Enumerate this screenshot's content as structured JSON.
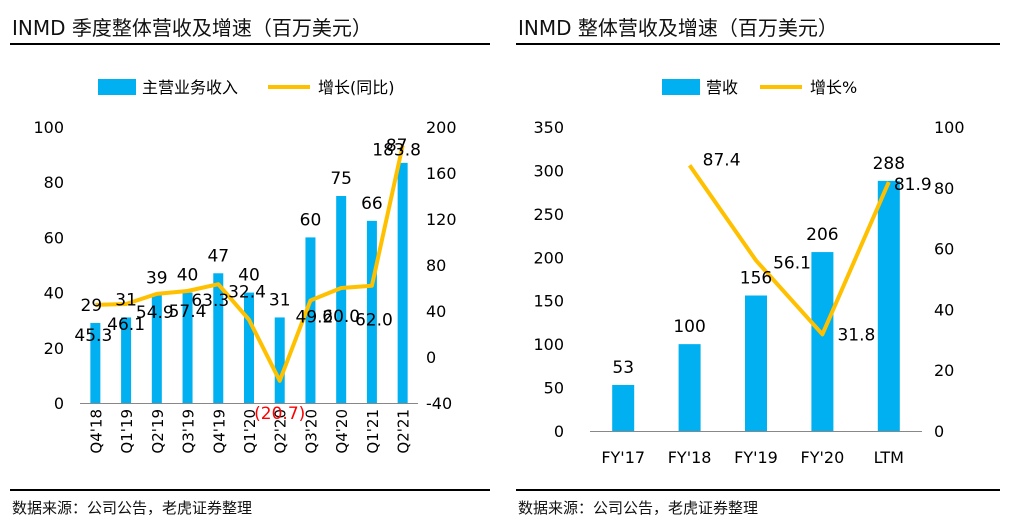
{
  "chart_data": [
    {
      "type": "bar",
      "title": "INMD 季度整体营收及增速（百万美元）",
      "source": "数据来源：公司公告，老虎证券整理",
      "categories": [
        "Q4'18",
        "Q1'19",
        "Q2'19",
        "Q3'19",
        "Q4'19",
        "Q1'20",
        "Q2'20",
        "Q3'20",
        "Q4'20",
        "Q1'21",
        "Q2'21"
      ],
      "series": [
        {
          "name": "主营业务收入",
          "kind": "bar",
          "axis": "left",
          "values": [
            29,
            31,
            39,
            40,
            47,
            40,
            31,
            60,
            75,
            66,
            87
          ],
          "labels": [
            "29",
            "31",
            "39",
            "40",
            "47",
            "40",
            "31",
            "60",
            "75",
            "66",
            "87"
          ]
        },
        {
          "name": "增长(同比)",
          "kind": "line",
          "axis": "right",
          "values": [
            45.3,
            46.1,
            54.9,
            57.4,
            63.3,
            32.4,
            -20.7,
            49.2,
            60.0,
            62.0,
            183.8
          ],
          "labels": [
            "45.3",
            "46.1",
            "54.9",
            "57.4",
            "63.3",
            "32.4",
            "(20.7)",
            "49.2",
            "60.0",
            "62.0",
            "183.8"
          ]
        }
      ],
      "y_left": {
        "min": 0,
        "max": 100,
        "ticks": [
          "0",
          "20",
          "40",
          "60",
          "80",
          "100"
        ]
      },
      "y_right": {
        "min": -40,
        "max": 200,
        "ticks": [
          "-40",
          "0",
          "40",
          "80",
          "120",
          "160",
          "200"
        ]
      },
      "legend_position": "top",
      "grid": false,
      "colors": {
        "bar": "#00B0F0",
        "line": "#FFC000",
        "negative_label": "#FF0000"
      }
    },
    {
      "type": "bar",
      "title": "INMD 整体营收及增速（百万美元）",
      "source": "数据来源：公司公告，老虎证券整理",
      "categories": [
        "FY'17",
        "FY'18",
        "FY'19",
        "FY'20",
        "LTM"
      ],
      "series": [
        {
          "name": "营收",
          "kind": "bar",
          "axis": "left",
          "values": [
            53,
            100,
            156,
            206,
            288
          ],
          "labels": [
            "53",
            "100",
            "156",
            "206",
            "288"
          ]
        },
        {
          "name": "增长%",
          "kind": "line",
          "axis": "right",
          "values": [
            null,
            87.4,
            56.1,
            31.8,
            81.9
          ],
          "labels": [
            "",
            "87.4",
            "56.1",
            "31.8",
            "81.9"
          ]
        }
      ],
      "y_left": {
        "min": 0,
        "max": 350,
        "ticks": [
          "0",
          "50",
          "100",
          "150",
          "200",
          "250",
          "300",
          "350"
        ]
      },
      "y_right": {
        "min": 0,
        "max": 100,
        "ticks": [
          "0",
          "20",
          "40",
          "60",
          "80",
          "100"
        ]
      },
      "legend_position": "top",
      "grid": false,
      "colors": {
        "bar": "#00B0F0",
        "line": "#FFC000"
      }
    }
  ]
}
